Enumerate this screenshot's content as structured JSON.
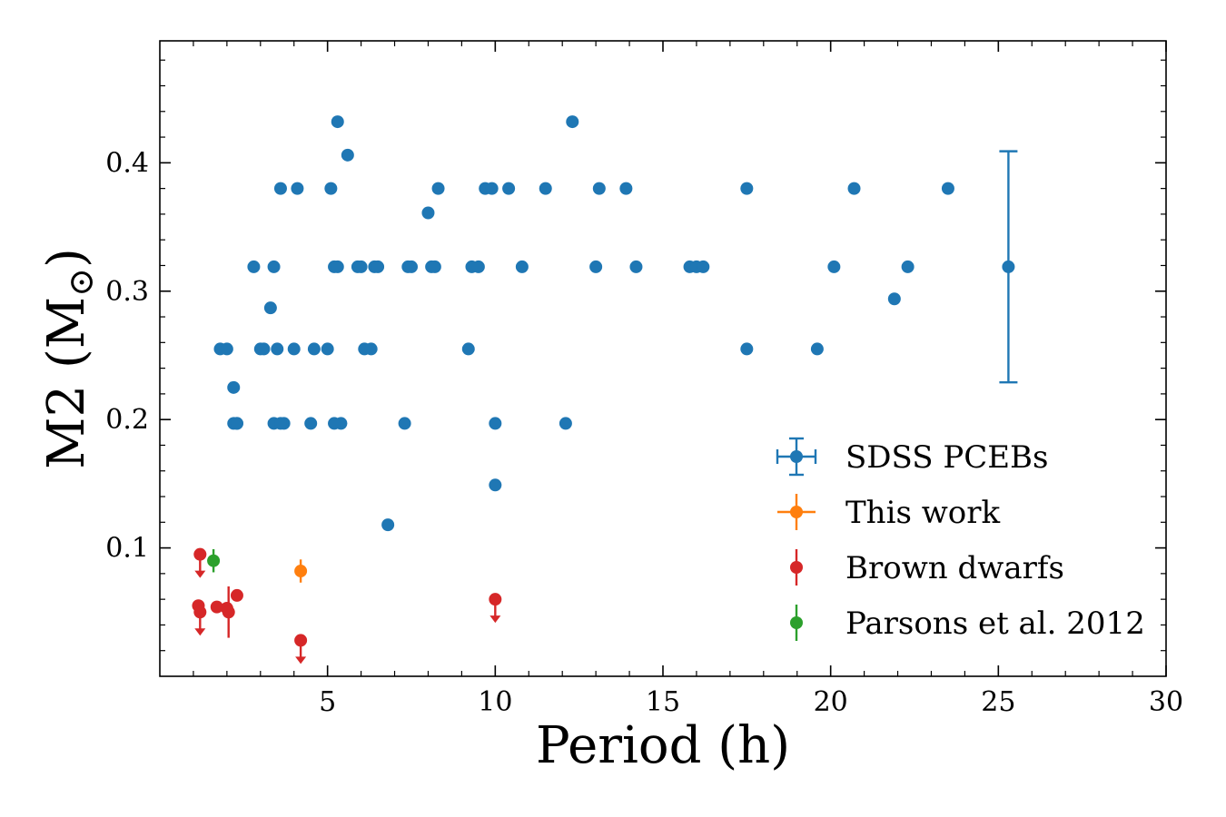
{
  "chart_data": {
    "type": "scatter",
    "xlabel": "Period (h)",
    "ylabel": "M2 (M",
    "ylabel_symbol": "⊙",
    "ylabel_close": ")",
    "xlim": [
      0,
      30
    ],
    "ylim": [
      0.0,
      0.495
    ],
    "xticks": [
      5,
      10,
      15,
      20,
      25,
      30
    ],
    "yticks": [
      0.1,
      0.2,
      0.3,
      0.4
    ],
    "xtick_labels": [
      "5",
      "10",
      "15",
      "20",
      "25",
      "30"
    ],
    "ytick_labels": [
      "0.1",
      "0.2",
      "0.3",
      "0.4"
    ],
    "grid": false,
    "legend_placement": "lower-right",
    "series": [
      {
        "name": "SDSS PCEBs",
        "color": "#1f77b4",
        "marker": "errorbar-xy",
        "x": [
          1.8,
          2.0,
          2.2,
          2.3,
          2.8,
          3.0,
          3.1,
          3.3,
          3.4,
          3.5,
          3.7,
          3.6,
          4.0,
          4.1,
          4.5,
          4.6,
          5.0,
          5.1,
          5.2,
          5.3,
          5.4,
          5.6,
          5.3,
          5.2,
          5.9,
          6.0,
          6.1,
          6.3,
          6.4,
          6.5,
          6.8,
          7.3,
          7.4,
          7.5,
          8.0,
          8.1,
          8.2,
          8.3,
          9.2,
          9.3,
          9.5,
          9.7,
          9.9,
          10.0,
          10.0,
          10.4,
          10.8,
          11.5,
          12.1,
          12.3,
          13.0,
          13.1,
          13.9,
          14.2,
          15.8,
          16.0,
          16.2,
          17.5,
          17.5,
          19.6,
          20.1,
          20.7,
          21.9,
          22.3,
          23.5,
          25.3,
          2.2,
          2.3,
          3.4,
          3.6
        ],
        "y": [
          0.255,
          0.255,
          0.225,
          0.197,
          0.319,
          0.255,
          0.255,
          0.287,
          0.319,
          0.255,
          0.197,
          0.38,
          0.255,
          0.38,
          0.197,
          0.255,
          0.255,
          0.38,
          0.319,
          0.319,
          0.197,
          0.406,
          0.432,
          0.197,
          0.319,
          0.319,
          0.255,
          0.255,
          0.319,
          0.319,
          0.118,
          0.197,
          0.319,
          0.319,
          0.361,
          0.319,
          0.319,
          0.38,
          0.255,
          0.319,
          0.319,
          0.38,
          0.38,
          0.197,
          0.149,
          0.38,
          0.319,
          0.38,
          0.197,
          0.432,
          0.319,
          0.38,
          0.38,
          0.319,
          0.319,
          0.319,
          0.319,
          0.38,
          0.255,
          0.255,
          0.319,
          0.38,
          0.294,
          0.319,
          0.38,
          0.319,
          0.197,
          0.197,
          0.197,
          0.197
        ],
        "error_bar": {
          "x": 25.3,
          "y": 0.319,
          "y_low": 0.229,
          "y_high": 0.409
        }
      },
      {
        "name": "This work",
        "color": "#ff7f0e",
        "marker": "errorbar-xy",
        "x": [
          4.2
        ],
        "y": [
          0.082
        ],
        "yerr": [
          0.009
        ]
      },
      {
        "name": "Brown dwarfs",
        "color": "#d62728",
        "marker": "errorbar-y",
        "x": [
          1.2,
          1.15,
          1.2,
          1.7,
          2.0,
          2.05,
          2.3,
          4.2,
          10.0
        ],
        "y": [
          0.095,
          0.055,
          0.05,
          0.054,
          0.053,
          0.05,
          0.063,
          0.028,
          0.06
        ],
        "upper_limit": [
          true,
          false,
          true,
          false,
          false,
          false,
          false,
          true,
          true
        ],
        "yerr": [
          0,
          0,
          0,
          0,
          0,
          0.02,
          0,
          0,
          0
        ]
      },
      {
        "name": "Parsons et al. 2012",
        "color": "#2ca02c",
        "marker": "errorbar-y",
        "x": [
          1.6
        ],
        "y": [
          0.09
        ],
        "yerr": [
          0.009
        ]
      }
    ]
  }
}
